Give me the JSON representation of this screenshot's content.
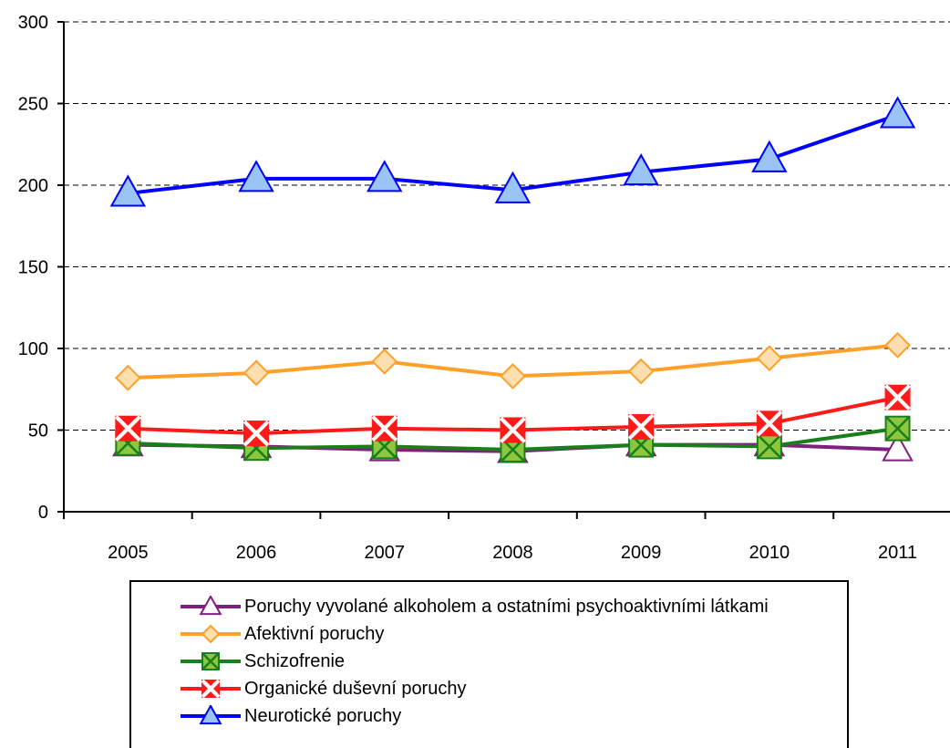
{
  "chart_data": {
    "type": "line",
    "title": "",
    "xlabel": "",
    "ylabel": "",
    "categories": [
      "2005",
      "2006",
      "2007",
      "2008",
      "2009",
      "2010",
      "2011"
    ],
    "ylim": [
      0,
      300
    ],
    "yticks": [
      "0",
      "50",
      "100",
      "150",
      "200",
      "250",
      "300"
    ],
    "grid": "horizontal dashed",
    "legend_position": "bottom",
    "series": [
      {
        "name": "Poruchy vyvolané alkoholem a ostatními psychoaktivními látkami",
        "values": [
          41,
          40,
          38,
          37,
          41,
          41,
          38
        ],
        "color": "#7f1f7f",
        "marker": "triangle-open"
      },
      {
        "name": "Afektivní poruchy",
        "values": [
          82,
          85,
          92,
          83,
          86,
          94,
          102
        ],
        "color": "#ffa028",
        "marker": "diamond"
      },
      {
        "name": "Schizofrenie",
        "values": [
          42,
          39,
          40,
          38,
          41,
          40,
          51
        ],
        "color": "#1a7f1a",
        "marker": "square-x"
      },
      {
        "name": "Organické duševní poruchy",
        "values": [
          51,
          48,
          51,
          50,
          52,
          54,
          70
        ],
        "color": "#ff1a1a",
        "marker": "square-x"
      },
      {
        "name": "Neurotické poruchy",
        "values": [
          195,
          204,
          204,
          197,
          208,
          216,
          243
        ],
        "color": "#0000ff",
        "marker": "triangle"
      }
    ]
  }
}
